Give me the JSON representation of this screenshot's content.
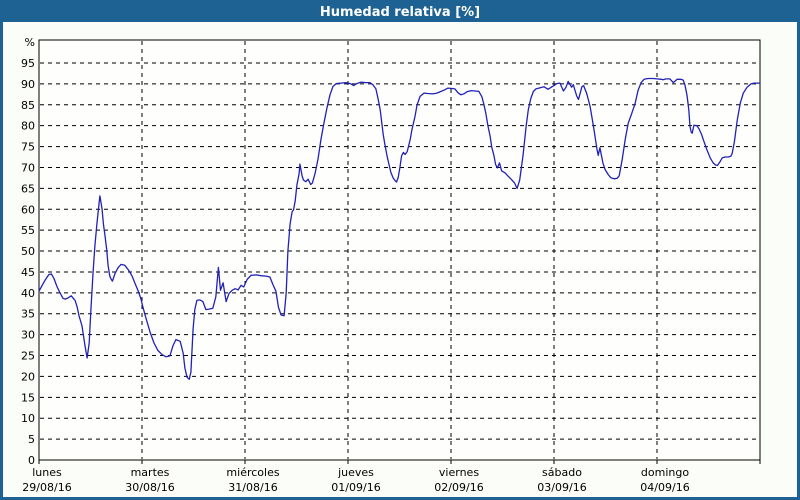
{
  "title": "Humedad relativa [%]",
  "colors": {
    "frame": "#1e6293",
    "title_text": "#ffffff",
    "background": "#fbfdf9",
    "plot_background": "#fefffd",
    "axis": "#000000",
    "grid": "#000000",
    "line": "#2121b8"
  },
  "chart_data": {
    "type": "line",
    "title": "Humedad relativa [%]",
    "ylabel": "%",
    "unit_label": "%",
    "ylim": [
      0,
      100
    ],
    "y_ticks": [
      0,
      5,
      10,
      15,
      20,
      25,
      30,
      35,
      40,
      45,
      50,
      55,
      60,
      65,
      70,
      75,
      80,
      85,
      90,
      95
    ],
    "x_days": [
      {
        "name": "lunes",
        "date": "29/08/16"
      },
      {
        "name": "martes",
        "date": "30/08/16"
      },
      {
        "name": "miércoles",
        "date": "31/08/16"
      },
      {
        "name": "jueves",
        "date": "01/09/16"
      },
      {
        "name": "viernes",
        "date": "02/09/16"
      },
      {
        "name": "sábado",
        "date": "03/09/16"
      },
      {
        "name": "domingo",
        "date": "04/09/16"
      }
    ],
    "x_range_hours": [
      0,
      168
    ],
    "grid": true,
    "legend_position": "none",
    "series": [
      {
        "name": "Humedad relativa",
        "color": "#2121b8",
        "points": [
          [
            0,
            40.4
          ],
          [
            0.7,
            41.7
          ],
          [
            1.4,
            43.0
          ],
          [
            2.3,
            44.4
          ],
          [
            2.9,
            44.5
          ],
          [
            3.5,
            43.4
          ],
          [
            4.2,
            41.5
          ],
          [
            4.9,
            40.0
          ],
          [
            5.6,
            38.7
          ],
          [
            6.1,
            38.5
          ],
          [
            6.8,
            38.8
          ],
          [
            7.5,
            39.3
          ],
          [
            8.4,
            38.2
          ],
          [
            8.9,
            36.6
          ],
          [
            9.3,
            34.6
          ],
          [
            10,
            32.2
          ],
          [
            10.7,
            27.5
          ],
          [
            11.2,
            24.4
          ],
          [
            11.7,
            28.0
          ],
          [
            12.1,
            36.0
          ],
          [
            12.6,
            45.0
          ],
          [
            13,
            51.0
          ],
          [
            13.5,
            56.5
          ],
          [
            14,
            61.5
          ],
          [
            14.2,
            63.2
          ],
          [
            14.7,
            60.0
          ],
          [
            15,
            56.5
          ],
          [
            15.4,
            53.5
          ],
          [
            15.8,
            50.1
          ],
          [
            16.1,
            46.5
          ],
          [
            16.5,
            44.0
          ],
          [
            16.8,
            43.3
          ],
          [
            17.1,
            42.8
          ],
          [
            17.7,
            44.6
          ],
          [
            18.4,
            46.0
          ],
          [
            19.1,
            46.8
          ],
          [
            20,
            46.6
          ],
          [
            20.9,
            45.4
          ],
          [
            21.7,
            44.0
          ],
          [
            22.4,
            42.2
          ],
          [
            23.2,
            40.2
          ],
          [
            23.8,
            38.4
          ],
          [
            24.2,
            36.6
          ],
          [
            24.9,
            34.0
          ],
          [
            25.9,
            30.5
          ],
          [
            26.8,
            28.0
          ],
          [
            27.7,
            26.2
          ],
          [
            28.7,
            25.2
          ],
          [
            29.6,
            24.7
          ],
          [
            30.5,
            24.9
          ],
          [
            31.2,
            27.3
          ],
          [
            31.9,
            28.8
          ],
          [
            32.9,
            28.4
          ],
          [
            33.6,
            25.5
          ],
          [
            34,
            22.0
          ],
          [
            34.5,
            19.8
          ],
          [
            35,
            19.3
          ],
          [
            35.4,
            21.0
          ],
          [
            35.9,
            31.4
          ],
          [
            36.3,
            36.0
          ],
          [
            36.8,
            38.2
          ],
          [
            37.5,
            38.3
          ],
          [
            38.2,
            37.9
          ],
          [
            38.9,
            36.0
          ],
          [
            39.6,
            36.1
          ],
          [
            40.5,
            36.3
          ],
          [
            41.2,
            39.0
          ],
          [
            41.8,
            46.1
          ],
          [
            42.3,
            40.6
          ],
          [
            42.9,
            42.4
          ],
          [
            43.6,
            37.9
          ],
          [
            44.3,
            39.9
          ],
          [
            45,
            40.6
          ],
          [
            45.7,
            41.0
          ],
          [
            46.4,
            40.7
          ],
          [
            47.1,
            41.8
          ],
          [
            47.7,
            41.4
          ],
          [
            48.5,
            43.2
          ],
          [
            49.4,
            44.2
          ],
          [
            50.6,
            44.3
          ],
          [
            51.7,
            44.1
          ],
          [
            52.9,
            44.0
          ],
          [
            53.8,
            43.8
          ],
          [
            54.5,
            42.0
          ],
          [
            55.2,
            40.4
          ],
          [
            55.8,
            36.5
          ],
          [
            56.4,
            34.7
          ],
          [
            57.1,
            34.5
          ],
          [
            57.6,
            40.0
          ],
          [
            58,
            50.0
          ],
          [
            58.5,
            56.5
          ],
          [
            59,
            59.5
          ],
          [
            59.3,
            59.8
          ],
          [
            59.7,
            62.0
          ],
          [
            60.1,
            65.8
          ],
          [
            60.6,
            68.5
          ],
          [
            60.8,
            70.8
          ],
          [
            61.3,
            68.0
          ],
          [
            61.6,
            67.0
          ],
          [
            62.2,
            66.6
          ],
          [
            62.7,
            67.2
          ],
          [
            63.3,
            65.9
          ],
          [
            63.7,
            66.3
          ],
          [
            64.3,
            68.5
          ],
          [
            65,
            72.0
          ],
          [
            65.7,
            76.8
          ],
          [
            66.4,
            80.7
          ],
          [
            67.1,
            84.3
          ],
          [
            67.8,
            87.4
          ],
          [
            68.5,
            89.4
          ],
          [
            69.3,
            90.1
          ],
          [
            70.4,
            90.2
          ],
          [
            71.5,
            90.3
          ],
          [
            72.7,
            90.0
          ],
          [
            73.3,
            89.6
          ],
          [
            74.1,
            90.1
          ],
          [
            75,
            90.4
          ],
          [
            76.2,
            90.3
          ],
          [
            77.1,
            90.3
          ],
          [
            77.8,
            89.8
          ],
          [
            78.5,
            88.8
          ],
          [
            79,
            86.5
          ],
          [
            79.5,
            83.8
          ],
          [
            80.2,
            77.9
          ],
          [
            80.6,
            75.5
          ],
          [
            81.1,
            72.7
          ],
          [
            81.6,
            70.5
          ],
          [
            82,
            68.8
          ],
          [
            82.5,
            67.5
          ],
          [
            83,
            66.8
          ],
          [
            83.3,
            66.5
          ],
          [
            83.7,
            67.6
          ],
          [
            84.1,
            70.0
          ],
          [
            84.5,
            72.8
          ],
          [
            84.9,
            73.6
          ],
          [
            85.3,
            73.1
          ],
          [
            85.8,
            73.8
          ],
          [
            86.5,
            76.7
          ],
          [
            86.9,
            79.0
          ],
          [
            87.6,
            82.1
          ],
          [
            88.1,
            85.0
          ],
          [
            88.8,
            87.0
          ],
          [
            89.7,
            87.8
          ],
          [
            90.6,
            87.7
          ],
          [
            91.8,
            87.6
          ],
          [
            92.7,
            87.8
          ],
          [
            93.7,
            88.2
          ],
          [
            94.6,
            88.6
          ],
          [
            95.3,
            89.0
          ],
          [
            96.2,
            88.9
          ],
          [
            96.9,
            88.8
          ],
          [
            97.6,
            87.9
          ],
          [
            98.3,
            87.4
          ],
          [
            99,
            87.6
          ],
          [
            99.7,
            88.1
          ],
          [
            100.7,
            88.4
          ],
          [
            101.6,
            88.3
          ],
          [
            102.5,
            88.2
          ],
          [
            103.2,
            86.9
          ],
          [
            103.7,
            85.0
          ],
          [
            104.1,
            83.0
          ],
          [
            104.6,
            80.0
          ],
          [
            105.1,
            77.5
          ],
          [
            105.5,
            74.8
          ],
          [
            106,
            72.9
          ],
          [
            106.4,
            70.7
          ],
          [
            106.8,
            69.9
          ],
          [
            107.3,
            71.1
          ],
          [
            107.8,
            69.2
          ],
          [
            108.6,
            68.7
          ],
          [
            109.3,
            67.9
          ],
          [
            110.1,
            67.1
          ],
          [
            110.8,
            66.3
          ],
          [
            111.4,
            65.0
          ],
          [
            112,
            67.0
          ],
          [
            112.8,
            73.0
          ],
          [
            113.5,
            79.8
          ],
          [
            114,
            83.8
          ],
          [
            114.6,
            86.5
          ],
          [
            115.2,
            88.2
          ],
          [
            115.8,
            88.8
          ],
          [
            116.8,
            89.1
          ],
          [
            117.7,
            89.3
          ],
          [
            118.6,
            88.7
          ],
          [
            119.5,
            89.3
          ],
          [
            120,
            89.6
          ],
          [
            120.7,
            90.1
          ],
          [
            121.4,
            90.2
          ],
          [
            122.2,
            88.3
          ],
          [
            122.8,
            89.2
          ],
          [
            123.3,
            90.6
          ],
          [
            124.1,
            89.2
          ],
          [
            124.5,
            89.8
          ],
          [
            125.3,
            87.1
          ],
          [
            125.7,
            86.3
          ],
          [
            126.5,
            89.3
          ],
          [
            126.9,
            89.6
          ],
          [
            127.6,
            87.8
          ],
          [
            128.4,
            84.6
          ],
          [
            129.2,
            79.8
          ],
          [
            130,
            74.5
          ],
          [
            130.3,
            72.9
          ],
          [
            130.7,
            74.7
          ],
          [
            131.4,
            71.1
          ],
          [
            131.9,
            69.5
          ],
          [
            132.7,
            68.2
          ],
          [
            133.3,
            67.5
          ],
          [
            134,
            67.3
          ],
          [
            134.7,
            67.4
          ],
          [
            135.2,
            68.0
          ],
          [
            135.9,
            71.9
          ],
          [
            136.6,
            76.7
          ],
          [
            137.3,
            80.6
          ],
          [
            138.1,
            82.9
          ],
          [
            138.9,
            85.3
          ],
          [
            139.6,
            88.5
          ],
          [
            140.3,
            90.3
          ],
          [
            141,
            91.1
          ],
          [
            141.9,
            91.3
          ],
          [
            143.1,
            91.3
          ],
          [
            144,
            91.2
          ],
          [
            145,
            91.1
          ],
          [
            145.4,
            91.0
          ],
          [
            146.1,
            91.2
          ],
          [
            147,
            91.2
          ],
          [
            147.8,
            90.3
          ],
          [
            148.7,
            91.1
          ],
          [
            149.6,
            91.1
          ],
          [
            150.1,
            90.9
          ],
          [
            150.5,
            89.8
          ],
          [
            151,
            87.3
          ],
          [
            151.4,
            83.8
          ],
          [
            151.7,
            79.8
          ],
          [
            152,
            78.4
          ],
          [
            152.2,
            78.2
          ],
          [
            152.6,
            80.1
          ],
          [
            153.3,
            80.0
          ],
          [
            153.8,
            79.2
          ],
          [
            154.4,
            77.9
          ],
          [
            154.8,
            76.6
          ],
          [
            155.6,
            74.3
          ],
          [
            156.4,
            72.3
          ],
          [
            157.1,
            71.1
          ],
          [
            157.6,
            70.6
          ],
          [
            158.1,
            70.5
          ],
          [
            158.7,
            71.4
          ],
          [
            159.2,
            72.3
          ],
          [
            159.9,
            72.5
          ],
          [
            160.6,
            72.5
          ],
          [
            161.2,
            72.7
          ],
          [
            161.5,
            73.3
          ],
          [
            162,
            76.0
          ],
          [
            162.7,
            81.4
          ],
          [
            163.4,
            85.4
          ],
          [
            164.1,
            87.8
          ],
          [
            165,
            89.2
          ],
          [
            165.9,
            90.0
          ],
          [
            166.6,
            90.2
          ],
          [
            167.8,
            90.2
          ],
          [
            168,
            90.2
          ]
        ]
      }
    ]
  }
}
